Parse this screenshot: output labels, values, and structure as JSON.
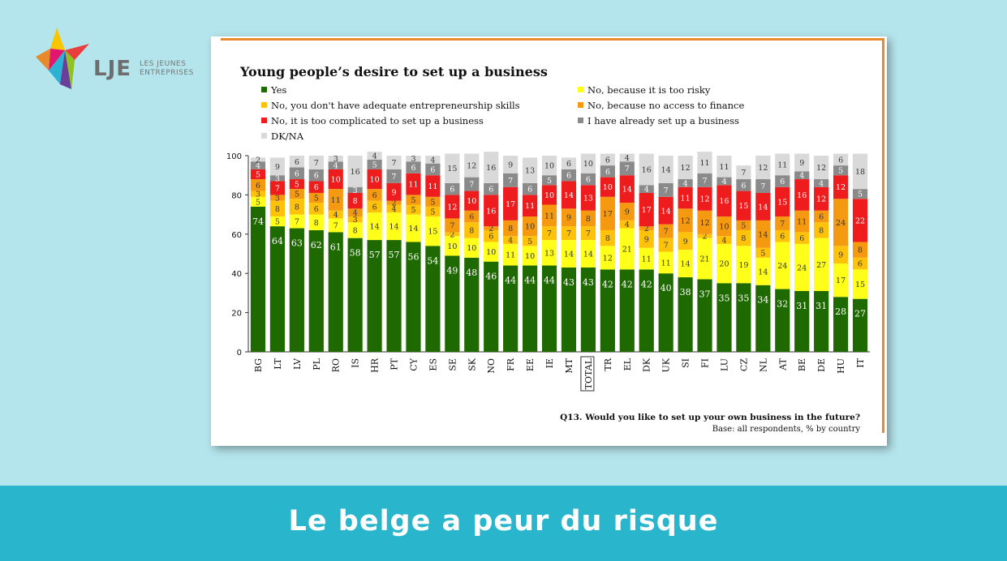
{
  "logo": {
    "name": "LJE",
    "sub_line1": "LES JEUNES",
    "sub_line2": "ENTREPRISES"
  },
  "banner": {
    "text": "Le belge a peur du risque"
  },
  "colors": {
    "yes": "#1e6a00",
    "risky": "#ffff1a",
    "skills": "#ffc20a",
    "finance": "#f59a10",
    "complicated": "#ee1c1c",
    "already": "#8a8a8a",
    "dkna": "#d9d9d9",
    "accent": "#e8892b",
    "band": "#29b6cc",
    "background": "#b5e5ec"
  },
  "chart_data": {
    "type": "bar",
    "stacked": true,
    "title": "Young people’s desire to set up a business",
    "footnote": "Q13. Would you like to set up your own business in the future?",
    "base_note": "Base: all respondents, % by country",
    "ylim": [
      0,
      100
    ],
    "yticks": [
      0,
      20,
      40,
      60,
      80,
      100
    ],
    "highlight_category": "TOTAL",
    "legend_position": "top",
    "categories": [
      "BG",
      "LT",
      "LV",
      "PL",
      "RO",
      "IS",
      "HR",
      "PT",
      "CY",
      "ES",
      "SE",
      "SK",
      "NO",
      "FR",
      "EE",
      "IE",
      "MT",
      "TOTAL",
      "TR",
      "EL",
      "DK",
      "UK",
      "SI",
      "FI",
      "LU",
      "CZ",
      "NL",
      "AT",
      "BE",
      "DE",
      "HU",
      "IT"
    ],
    "series": [
      {
        "key": "yes",
        "name": "Yes",
        "values": [
          74,
          64,
          63,
          62,
          61,
          58,
          57,
          57,
          56,
          54,
          49,
          48,
          46,
          44,
          44,
          44,
          43,
          43,
          42,
          42,
          42,
          40,
          38,
          37,
          35,
          35,
          34,
          32,
          31,
          31,
          28,
          27
        ]
      },
      {
        "key": "risky",
        "name": "No, because it is too risky",
        "values": [
          5,
          5,
          7,
          8,
          7,
          8,
          14,
          14,
          14,
          15,
          10,
          10,
          10,
          11,
          10,
          13,
          14,
          14,
          12,
          21,
          11,
          11,
          14,
          21,
          20,
          19,
          14,
          24,
          24,
          27,
          17,
          15
        ]
      },
      {
        "key": "skills",
        "name": "No, you don't have adequate entrepreneurship skills",
        "values": [
          3,
          8,
          8,
          6,
          4,
          3,
          6,
          4,
          5,
          5,
          2,
          8,
          6,
          4,
          5,
          7,
          7,
          7,
          8,
          4,
          9,
          7,
          9,
          2,
          4,
          8,
          5,
          6,
          6,
          8,
          9,
          6
        ]
      },
      {
        "key": "finance",
        "name": "No, because no access to finance",
        "values": [
          6,
          3,
          5,
          5,
          11,
          4,
          6,
          2,
          5,
          5,
          7,
          6,
          2,
          8,
          10,
          11,
          9,
          8,
          17,
          9,
          2,
          7,
          12,
          12,
          10,
          5,
          14,
          7,
          11,
          6,
          24,
          8
        ]
      },
      {
        "key": "complicated",
        "name": "No, it is too complicated to set up a business",
        "values": [
          5,
          7,
          5,
          6,
          10,
          8,
          10,
          9,
          11,
          11,
          12,
          10,
          16,
          17,
          11,
          10,
          14,
          13,
          10,
          14,
          17,
          14,
          11,
          12,
          16,
          15,
          14,
          15,
          16,
          12,
          12,
          22
        ]
      },
      {
        "key": "already",
        "name": "I have already set up a business",
        "values": [
          4,
          3,
          6,
          6,
          4,
          3,
          5,
          7,
          6,
          6,
          6,
          7,
          6,
          7,
          6,
          5,
          6,
          6,
          6,
          7,
          4,
          7,
          4,
          7,
          4,
          6,
          7,
          6,
          4,
          4,
          5,
          5
        ]
      },
      {
        "key": "dkna",
        "name": "DK/NA",
        "values": [
          2,
          9,
          6,
          7,
          3,
          16,
          4,
          7,
          3,
          4,
          15,
          12,
          16,
          9,
          13,
          10,
          6,
          10,
          6,
          4,
          16,
          14,
          12,
          11,
          11,
          7,
          12,
          11,
          9,
          12,
          6,
          18
        ]
      }
    ]
  }
}
